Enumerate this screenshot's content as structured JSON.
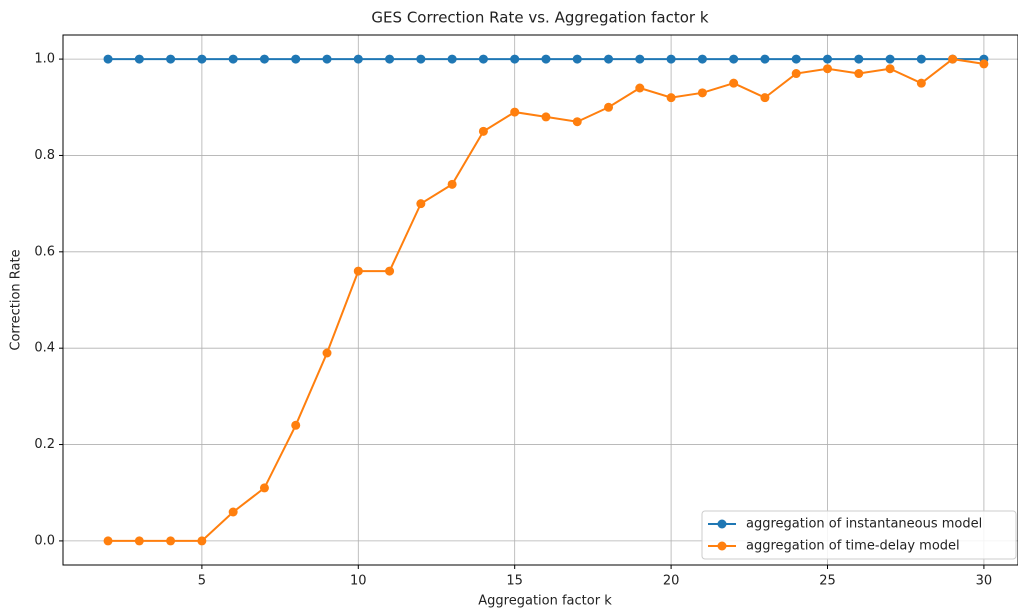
{
  "chart_data": {
    "type": "line",
    "title": "GES Correction Rate vs. Aggregation factor k",
    "x_label": "Aggregation factor k",
    "y_label": "Correction Rate",
    "x": [
      2,
      3,
      4,
      5,
      6,
      7,
      8,
      9,
      10,
      11,
      12,
      13,
      14,
      15,
      16,
      17,
      18,
      19,
      20,
      21,
      22,
      23,
      24,
      25,
      26,
      27,
      28,
      29,
      30
    ],
    "series": [
      {
        "name": "aggregation of instantaneous model",
        "color": "#1f77b4",
        "values": [
          1,
          1,
          1,
          1,
          1,
          1,
          1,
          1,
          1,
          1,
          1,
          1,
          1,
          1,
          1,
          1,
          1,
          1,
          1,
          1,
          1,
          1,
          1,
          1,
          1,
          1,
          1,
          1,
          1
        ]
      },
      {
        "name": "aggregation of time-delay model",
        "color": "#ff7f0e",
        "values": [
          0,
          0,
          0,
          0,
          0.06,
          0.11,
          0.24,
          0.39,
          0.56,
          0.56,
          0.7,
          0.74,
          0.85,
          0.89,
          0.88,
          0.87,
          0.9,
          0.94,
          0.92,
          0.93,
          0.95,
          0.92,
          0.97,
          0.98,
          0.97,
          0.98,
          0.95,
          1,
          0.99
        ]
      }
    ],
    "xlim": [
      0.56,
      31.09
    ],
    "ylim": [
      -0.05,
      1.05
    ],
    "xticks": [
      5,
      10,
      15,
      20,
      25,
      30
    ],
    "yticks": [
      {
        "value": 0,
        "label": "0.0"
      },
      0.2,
      0.4,
      0.6,
      0.8,
      {
        "value": 1,
        "label": "1.0"
      }
    ],
    "grid": true,
    "legend": "lower right"
  }
}
